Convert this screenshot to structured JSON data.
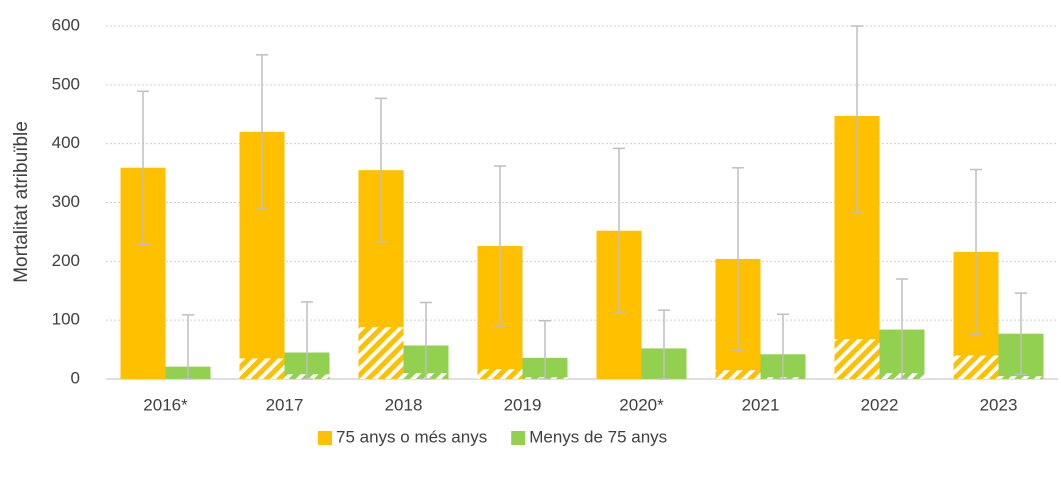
{
  "chart_data": {
    "type": "bar",
    "y_label": "Mortalitat atribuïble",
    "categories": [
      "2016*",
      "2017",
      "2018",
      "2019",
      "2020*",
      "2021",
      "2022",
      "2023"
    ],
    "series": [
      {
        "name": "75 anys o més anys",
        "color": "#ffc000",
        "values": [
          359,
          420,
          355,
          226,
          252,
          204,
          447,
          216
        ],
        "errors": [
          130,
          131,
          122,
          136,
          140,
          155,
          165,
          140
        ],
        "hatched_values": [
          0,
          35,
          88,
          17,
          0,
          15,
          68,
          40
        ]
      },
      {
        "name": "Menys de 75 anys",
        "color": "#92d050",
        "values": [
          21,
          45,
          57,
          36,
          52,
          42,
          84,
          77
        ],
        "errors": [
          88,
          86,
          73,
          63,
          65,
          68,
          86,
          69
        ],
        "hatched_values": [
          0,
          8,
          10,
          3,
          0,
          3,
          10,
          5
        ]
      }
    ],
    "error_color": "#bfbfbf",
    "ylim": [
      0,
      600
    ],
    "yticks": [
      0,
      100,
      200,
      300,
      400,
      500,
      600
    ],
    "grid": true,
    "legend": "bottom"
  }
}
